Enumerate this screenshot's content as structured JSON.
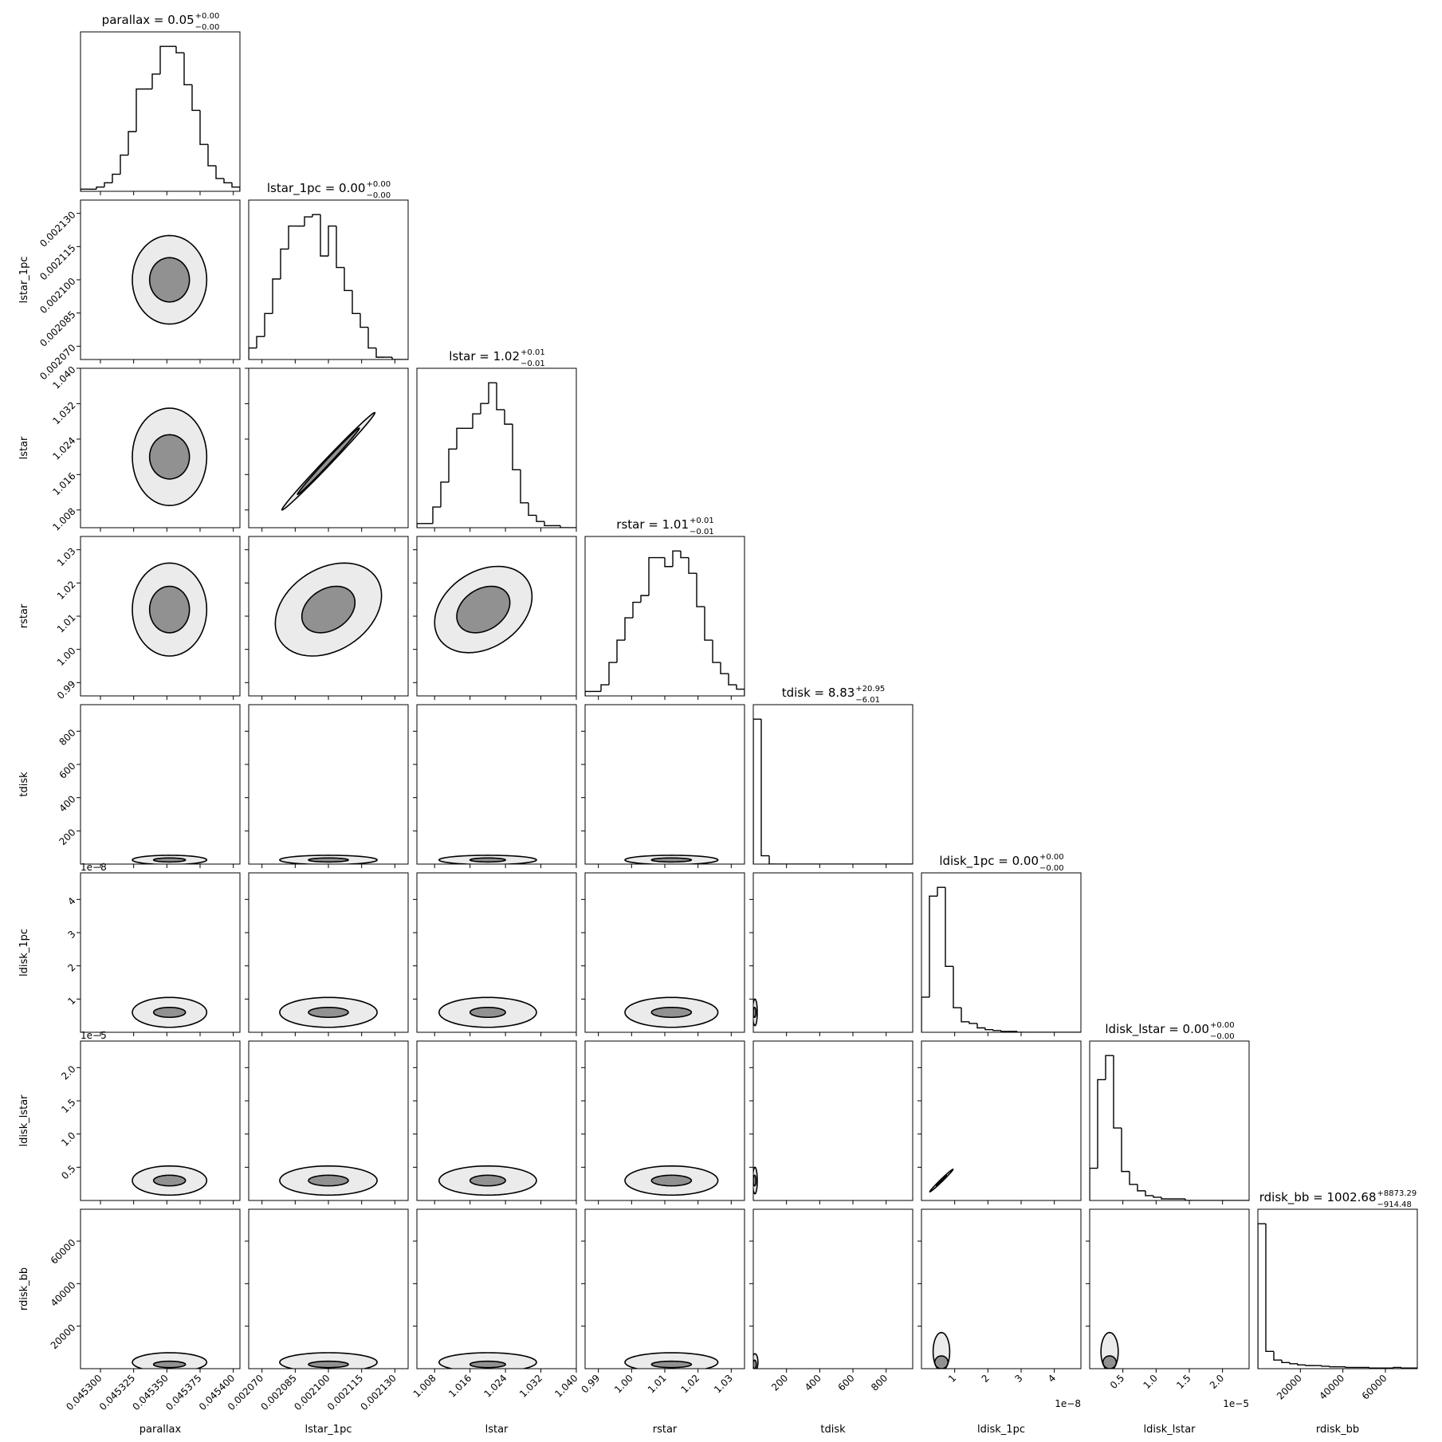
{
  "chart_data": {
    "type": "corner",
    "params": [
      {
        "label": "parallax",
        "title": {
          "text": "parallax = 0.05",
          "plus": "+0.00",
          "minus": "−0.00"
        },
        "lim": [
          0.045285,
          0.045405
        ],
        "ticks": [
          {
            "value": 0.0453,
            "label": "0.045300"
          },
          {
            "value": 0.045325,
            "label": "0.045325"
          },
          {
            "value": 0.04535,
            "label": "0.045350"
          },
          {
            "value": 0.045375,
            "label": "0.045375"
          },
          {
            "value": 0.0454,
            "label": "0.045400"
          }
        ],
        "bins": [
          0.045285,
          0.045291,
          0.045297,
          0.045303,
          0.045309,
          0.045315,
          0.045321,
          0.045327,
          0.045333,
          0.045339,
          0.045345,
          0.045351,
          0.045357,
          0.045363,
          0.045369,
          0.045375,
          0.045381,
          0.045387,
          0.045393,
          0.045399,
          0.045405
        ],
        "counts": [
          1,
          1,
          2,
          4,
          8,
          17,
          28,
          48,
          48,
          55,
          68,
          68,
          65,
          50,
          38,
          22,
          12,
          6,
          4,
          2
        ]
      },
      {
        "label": "lstar_1pc",
        "title": {
          "text": "lstar_1pc = 0.00",
          "plus": "+0.00",
          "minus": "−0.00"
        },
        "lim": [
          0.002064,
          0.002136
        ],
        "ticks": [
          {
            "value": 0.00207,
            "label": "0.002070"
          },
          {
            "value": 0.002085,
            "label": "0.002085"
          },
          {
            "value": 0.0021,
            "label": "0.002100"
          },
          {
            "value": 0.002115,
            "label": "0.002115"
          },
          {
            "value": 0.00213,
            "label": "0.002130"
          }
        ],
        "bins": [
          0.002064,
          0.0020676,
          0.0020712,
          0.0020748,
          0.0020784,
          0.002082,
          0.0020856,
          0.0020892,
          0.0020928,
          0.0020964,
          0.0021,
          0.0021036,
          0.0021072,
          0.0021108,
          0.0021144,
          0.002118,
          0.0021216,
          0.0021252,
          0.0021288,
          0.0021324,
          0.002136
        ],
        "counts": [
          5,
          10,
          20,
          35,
          48,
          58,
          58,
          62,
          63,
          45,
          58,
          40,
          30,
          20,
          14,
          5,
          1,
          1,
          0,
          0
        ]
      },
      {
        "label": "lstar",
        "title": {
          "text": "lstar = 1.02",
          "plus": "+0.01",
          "minus": "−0.01"
        },
        "lim": [
          1.004,
          1.04
        ],
        "ticks": [
          1.008,
          1.016,
          1.024,
          1.032,
          {
            "value": 1.04,
            "label": "1.040"
          }
        ],
        "bins": [
          1.004,
          1.0058,
          1.0076,
          1.0094,
          1.0112,
          1.013,
          1.0148,
          1.0166,
          1.0184,
          1.0202,
          1.022,
          1.0238,
          1.0256,
          1.0274,
          1.0292,
          1.031,
          1.0328,
          1.0346,
          1.0364,
          1.0382,
          1.04
        ],
        "counts": [
          2,
          2,
          10,
          22,
          38,
          48,
          48,
          55,
          60,
          70,
          57,
          50,
          28,
          12,
          6,
          3,
          1,
          1,
          0,
          0
        ]
      },
      {
        "label": "rstar",
        "title": {
          "text": "rstar = 1.01",
          "plus": "+0.01",
          "minus": "−0.01"
        },
        "lim": [
          0.986,
          1.034
        ],
        "ticks": [
          0.99,
          {
            "value": 1,
            "label": "1.00"
          },
          1.01,
          1.02,
          1.03
        ],
        "bins": [
          0.986,
          0.9884,
          0.9908,
          0.9932,
          0.9956,
          0.998,
          1.0004,
          1.0028,
          1.0052,
          1.0076,
          1.01,
          1.0124,
          1.0148,
          1.0172,
          1.0196,
          1.022,
          1.0244,
          1.0268,
          1.0292,
          1.0316,
          1.034
        ],
        "counts": [
          2,
          2,
          5,
          15,
          25,
          35,
          42,
          45,
          62,
          62,
          58,
          65,
          62,
          55,
          40,
          25,
          15,
          10,
          5,
          3
        ]
      },
      {
        "label": "tdisk",
        "title": {
          "text": "tdisk = 8.83",
          "plus": "+20.95",
          "minus": "−6.01"
        },
        "lim": [
          0,
          960
        ],
        "ticks": [
          200,
          400,
          600,
          800
        ],
        "bins": [
          0,
          48,
          96,
          144,
          192,
          240,
          288,
          336,
          384,
          432,
          480,
          528,
          576,
          624,
          672,
          720,
          768,
          816,
          864,
          912,
          960
        ],
        "counts": [
          210,
          12,
          0,
          0,
          0,
          0,
          0,
          0,
          0,
          0,
          0,
          0,
          0,
          0,
          0,
          0,
          0,
          0,
          0,
          0
        ]
      },
      {
        "label": "ldisk_1pc",
        "title": {
          "text": "ldisk_1pc = 0.00",
          "plus": "+0.00",
          "minus": "−0.00"
        },
        "lim": [
          0,
          4.8e-08
        ],
        "offset": "1e−8",
        "ticks": [
          {
            "value": 1e-08,
            "label": "1"
          },
          {
            "value": 2e-08,
            "label": "2"
          },
          {
            "value": 3e-08,
            "label": "3"
          },
          {
            "value": 4e-08,
            "label": "4"
          }
        ],
        "bins": [
          0,
          2.4e-09,
          4.8e-09,
          7.2e-09,
          9.6e-09,
          1.2e-08,
          1.44e-08,
          1.68e-08,
          1.92e-08,
          2.16e-08,
          2.4e-08,
          2.64e-08,
          2.88e-08,
          3.12e-08,
          3.36e-08,
          3.6e-08,
          3.84e-08,
          4.08e-08,
          4.32e-08,
          4.56e-08,
          4.8e-08
        ],
        "counts": [
          40,
          155,
          165,
          75,
          28,
          12,
          10,
          5,
          3,
          2,
          1,
          1,
          0,
          0,
          0,
          0,
          0,
          0,
          0,
          0
        ]
      },
      {
        "label": "ldisk_lstar",
        "title": {
          "text": "ldisk_lstar = 0.00",
          "plus": "+0.00",
          "minus": "−0.00"
        },
        "lim": [
          0,
          2.4e-05
        ],
        "offset": "1e−5",
        "ticks": [
          {
            "value": 5e-06,
            "label": "0.5"
          },
          {
            "value": 1e-05,
            "label": "1.0"
          },
          {
            "value": 1.5e-05,
            "label": "1.5"
          },
          {
            "value": 2e-05,
            "label": "2.0"
          }
        ],
        "bins": [
          0,
          1.2e-06,
          2.4e-06,
          3.6e-06,
          4.8e-06,
          6e-06,
          7.2e-06,
          8.4e-06,
          9.6e-06,
          1.08e-05,
          1.2e-05,
          1.32e-05,
          1.44e-05,
          1.56e-05,
          1.68e-05,
          1.8e-05,
          1.92e-05,
          2.04e-05,
          2.16e-05,
          2.28e-05,
          2.4e-05
        ],
        "counts": [
          20,
          75,
          90,
          45,
          18,
          10,
          6,
          3,
          2,
          1,
          1,
          1,
          0,
          0,
          0,
          0,
          0,
          0,
          0,
          0
        ]
      },
      {
        "label": "rdisk_bb",
        "title": {
          "text": "rdisk_bb = 1002.68",
          "plus": "+8873.29",
          "minus": "−914.48"
        },
        "lim": [
          0,
          75000
        ],
        "ticks": [
          20000,
          40000,
          60000
        ],
        "bins": [
          0,
          3750,
          7500,
          11250,
          15000,
          18750,
          22500,
          26250,
          30000,
          33750,
          37500,
          41250,
          45000,
          48750,
          52500,
          56250,
          60000,
          63750,
          67500,
          71250,
          75000
        ],
        "counts": [
          235,
          28,
          14,
          10,
          8,
          6,
          5,
          5,
          4,
          3,
          3,
          2,
          2,
          2,
          1,
          1,
          1,
          2,
          1,
          1
        ]
      }
    ],
    "panels": [
      {
        "contours": [
          [
            0.045352,
            0.0021,
            1.5e-05,
            1e-05
          ],
          [
            0.045352,
            0.0021,
            2.8e-05,
            2e-05
          ]
        ]
      },
      {
        "contours": [
          [
            0.045352,
            1.02,
            1.5e-05,
            0.005
          ],
          [
            0.045352,
            1.02,
            2.8e-05,
            0.011
          ]
        ]
      },
      {
        "corr": 0.995,
        "contours": [
          [
            0.0021,
            1.019,
            1.4e-05,
            0.0075
          ],
          [
            0.0021,
            1.019,
            2.1e-05,
            0.011
          ]
        ]
      },
      {
        "contours": [
          [
            0.045352,
            1.012,
            1.5e-05,
            0.007
          ],
          [
            0.045352,
            1.012,
            2.8e-05,
            0.014
          ]
        ]
      },
      {
        "corr": 0.3,
        "contours": [
          [
            0.0021,
            1.012,
            1.2e-05,
            0.007
          ],
          [
            0.0021,
            1.012,
            2.4e-05,
            0.014
          ]
        ]
      },
      {
        "corr": 0.3,
        "contours": [
          [
            1.019,
            1.012,
            0.006,
            0.007
          ],
          [
            1.019,
            1.012,
            0.011,
            0.013
          ]
        ]
      },
      {
        "contours": [
          [
            0.045352,
            25,
            1.2e-05,
            12
          ],
          [
            0.045352,
            25,
            2.8e-05,
            28
          ]
        ]
      },
      {
        "contours": [
          [
            0.0021,
            25,
            9e-06,
            12
          ],
          [
            0.0021,
            25,
            2.2e-05,
            28
          ]
        ]
      },
      {
        "contours": [
          [
            1.02,
            25,
            0.004,
            12
          ],
          [
            1.02,
            25,
            0.011,
            28
          ]
        ]
      },
      {
        "contours": [
          [
            1.012,
            25,
            0.006,
            12
          ],
          [
            1.012,
            25,
            0.014,
            28
          ]
        ]
      },
      {
        "contours": [
          [
            0.045352,
            6e-09,
            1.2e-05,
            1.5e-09
          ],
          [
            0.045352,
            6e-09,
            2.8e-05,
            4.5e-09
          ]
        ]
      },
      {
        "contours": [
          [
            0.0021,
            6e-09,
            9e-06,
            1.5e-09
          ],
          [
            0.0021,
            6e-09,
            2.2e-05,
            4.5e-09
          ]
        ]
      },
      {
        "contours": [
          [
            1.02,
            6e-09,
            0.004,
            1.5e-09
          ],
          [
            1.02,
            6e-09,
            0.011,
            4.5e-09
          ]
        ]
      },
      {
        "contours": [
          [
            1.012,
            6e-09,
            0.006,
            1.5e-09
          ],
          [
            1.012,
            6e-09,
            0.014,
            4.5e-09
          ]
        ]
      },
      {
        "contours": [
          [
            8,
            6e-09,
            8,
            1.5e-09
          ],
          [
            10,
            6e-09,
            14,
            4e-09
          ]
        ]
      },
      {
        "contours": [
          [
            0.045352,
            3e-06,
            1.2e-05,
            8e-07
          ],
          [
            0.045352,
            3e-06,
            2.8e-05,
            2.2e-06
          ]
        ]
      },
      {
        "contours": [
          [
            0.0021,
            3e-06,
            9e-06,
            8e-07
          ],
          [
            0.0021,
            3e-06,
            2.2e-05,
            2.2e-06
          ]
        ]
      },
      {
        "contours": [
          [
            1.02,
            3e-06,
            0.004,
            8e-07
          ],
          [
            1.02,
            3e-06,
            0.011,
            2.2e-06
          ]
        ]
      },
      {
        "contours": [
          [
            1.012,
            3e-06,
            0.006,
            8e-07
          ],
          [
            1.012,
            3e-06,
            0.014,
            2.2e-06
          ]
        ]
      },
      {
        "contours": [
          [
            8,
            3e-06,
            8,
            8e-07
          ],
          [
            10,
            3e-06,
            14,
            2e-06
          ]
        ]
      },
      {
        "corr": 0.99,
        "contours": [
          [
            6e-09,
            3e-06,
            1.5e-09,
            8e-07
          ],
          [
            6e-09,
            3e-06,
            3.5e-09,
            1.7e-06
          ]
        ]
      },
      {
        "contours": [
          [
            0.045352,
            2000,
            1.2e-05,
            1500
          ],
          [
            0.045352,
            3000,
            2.8e-05,
            4500
          ]
        ]
      },
      {
        "contours": [
          [
            0.0021,
            2000,
            9e-06,
            1500
          ],
          [
            0.0021,
            3000,
            2.2e-05,
            4500
          ]
        ]
      },
      {
        "contours": [
          [
            1.02,
            2000,
            0.004,
            1500
          ],
          [
            1.02,
            3000,
            0.011,
            4500
          ]
        ]
      },
      {
        "contours": [
          [
            1.012,
            2000,
            0.006,
            1500
          ],
          [
            1.012,
            3000,
            0.014,
            4500
          ]
        ]
      },
      {
        "contours": [
          [
            8,
            2000,
            10,
            2000
          ],
          [
            10,
            3000,
            18,
            4000
          ]
        ]
      },
      {
        "contours": [
          [
            6e-09,
            3000,
            2e-09,
            3000
          ],
          [
            6e-09,
            8000,
            2.5e-09,
            9000
          ]
        ]
      },
      {
        "contours": [
          [
            3e-06,
            3000,
            1e-06,
            3000
          ],
          [
            3e-06,
            8000,
            1.3e-06,
            9000
          ]
        ]
      }
    ]
  }
}
